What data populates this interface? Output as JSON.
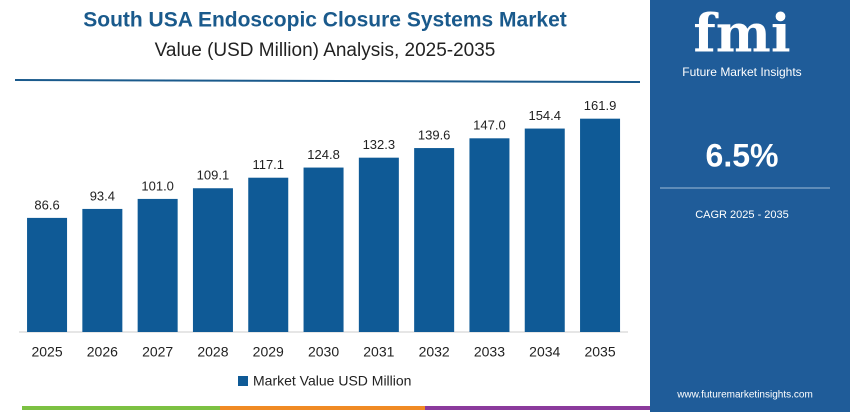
{
  "chart_data": {
    "type": "bar",
    "title": "South USA Endoscopic Closure Systems Market",
    "subtitle": "Value (USD Million) Analysis, 2025-2035",
    "categories": [
      "2025",
      "2026",
      "2027",
      "2028",
      "2029",
      "2030",
      "2031",
      "2032",
      "2033",
      "2034",
      "2035"
    ],
    "series": [
      {
        "name": "Market Value USD Million",
        "color": "#0f5a96",
        "values": [
          86.6,
          93.4,
          101.0,
          109.1,
          117.1,
          124.8,
          132.3,
          139.6,
          147.0,
          154.4,
          161.9
        ],
        "value_labels": [
          "86.6",
          "93.4",
          "101.0",
          "109.1",
          "117.1",
          "124.8",
          "132.3",
          "139.6",
          "147.0",
          "154.4",
          "161.9"
        ]
      }
    ],
    "ylim": [
      0,
      170
    ]
  },
  "panel": {
    "logo": "fmi",
    "brand": "Future Market Insights",
    "cagr_value": "6.5%",
    "cagr_label": "CAGR 2025 - 2035",
    "website": "www.futuremarketinsights.com"
  }
}
